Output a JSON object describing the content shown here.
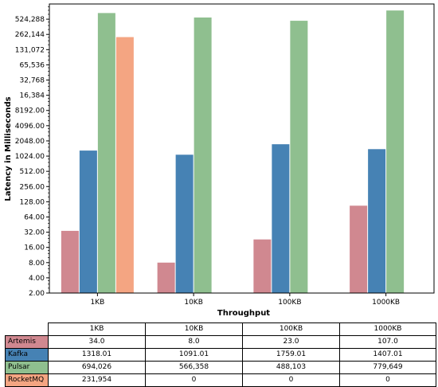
{
  "chart_data": {
    "type": "bar",
    "xlabel": "Throughput",
    "ylabel": "Latency in Milliseconds",
    "yscale": "log2",
    "ylim": [
      2,
      1048576
    ],
    "yticks": [
      2,
      4,
      8,
      16,
      32,
      64,
      128,
      256,
      512,
      1024,
      2048,
      4096,
      8192,
      16384,
      32768,
      65536,
      131072,
      262144,
      524288
    ],
    "ytick_labels": [
      "2.00",
      "4.00",
      "8.00",
      "16.00",
      "32.00",
      "64.00",
      "128.00",
      "256.00",
      "512.00",
      "1024.00",
      "2048.00",
      "4096.00",
      "8192.00",
      "16,384",
      "32,768",
      "65,536",
      "131,072",
      "262,144",
      "524,288"
    ],
    "categories": [
      "1KB",
      "10KB",
      "100KB",
      "1000KB"
    ],
    "series": [
      {
        "name": "Artemis",
        "color": "#d08890",
        "values": [
          34.0,
          8.0,
          23.0,
          107.0
        ],
        "labels": [
          "34.0",
          "8.0",
          "23.0",
          "107.0"
        ]
      },
      {
        "name": "Kafka",
        "color": "#4682b4",
        "values": [
          1318.01,
          1091.01,
          1759.01,
          1407.01
        ],
        "labels": [
          "1318.01",
          "1091.01",
          "1759.01",
          "1407.01"
        ]
      },
      {
        "name": "Pulsar",
        "color": "#8fbf8f",
        "values": [
          694026,
          566358,
          488103,
          779649
        ],
        "labels": [
          "694,026",
          "566,358",
          "488,103",
          "779,649"
        ]
      },
      {
        "name": "RocketMQ",
        "color": "#f4a582",
        "values": [
          231954,
          0,
          0,
          0
        ],
        "labels": [
          "231,954",
          "0",
          "0",
          "0"
        ]
      }
    ]
  }
}
